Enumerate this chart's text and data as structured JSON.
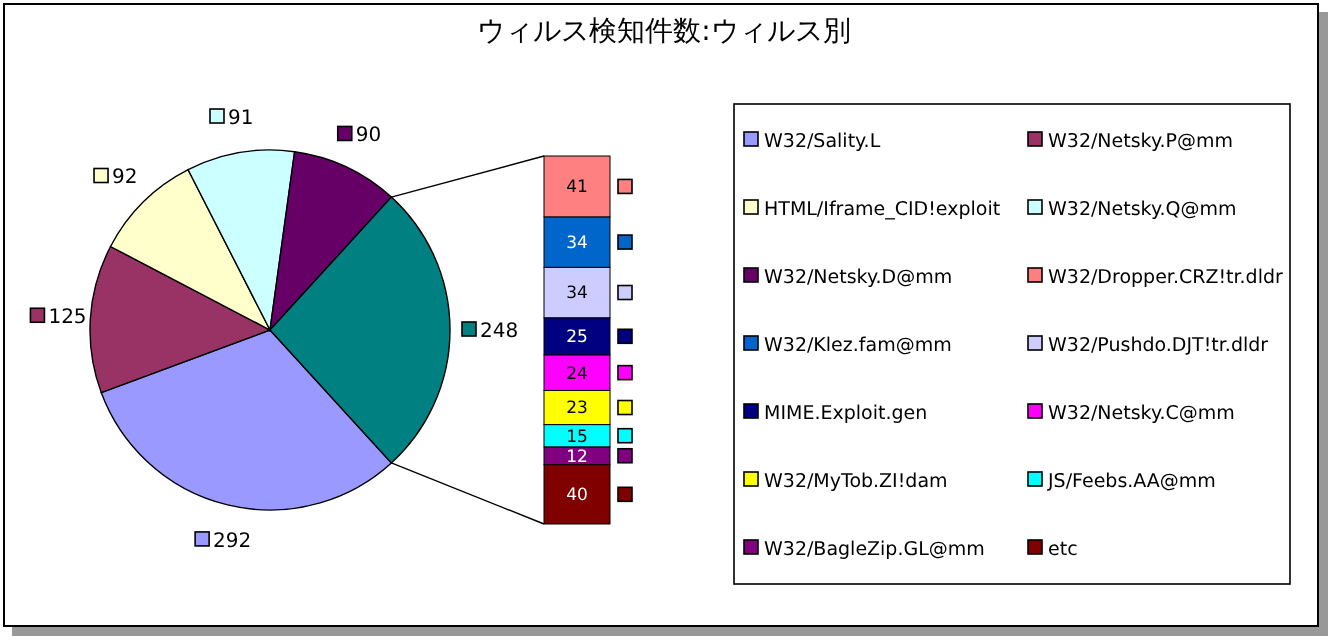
{
  "chart_data": [
    {
      "type": "pie",
      "title": "ウィルス検知件数:ウィルス別",
      "categories": [
        "W32/Sality.L",
        "W32/Netsky.P@mm",
        "HTML/Iframe_CID!exploit",
        "W32/Netsky.Q@mm",
        "W32/Netsky.D@mm",
        null
      ],
      "values": [
        292,
        125,
        92,
        91,
        90,
        248
      ],
      "colors": [
        "#9999ff",
        "#993366",
        "#ffffcc",
        "#ccffff",
        "#660066",
        "#008080"
      ],
      "data_labels": true,
      "legend": "right"
    },
    {
      "type": "bar",
      "stacked": true,
      "categories": [
        null
      ],
      "data_labels": true,
      "legend": "right",
      "series": [
        {
          "name": "etc",
          "color": "#800000",
          "values": [
            40
          ]
        },
        {
          "name": "W32/BagleZip.GL@mm",
          "color": "#800080",
          "values": [
            12
          ]
        },
        {
          "name": "JS/Feebs.AA@mm",
          "color": "#00ffff",
          "values": [
            15
          ]
        },
        {
          "name": "W32/MyTob.ZI!dam",
          "color": "#ffff00",
          "values": [
            23
          ]
        },
        {
          "name": "W32/Netsky.C@mm",
          "color": "#ff00ff",
          "values": [
            24
          ]
        },
        {
          "name": "MIME.Exploit.gen",
          "color": "#000080",
          "values": [
            25
          ]
        },
        {
          "name": "W32/Pushdo.DJT!tr.dldr",
          "color": "#ccccff",
          "values": [
            34
          ]
        },
        {
          "name": "W32/Klez.fam@mm",
          "color": "#0066cc",
          "values": [
            34
          ]
        },
        {
          "name": "W32/Dropper.CRZ!tr.dldr",
          "color": "#ff8080",
          "values": [
            41
          ]
        }
      ]
    }
  ]
}
